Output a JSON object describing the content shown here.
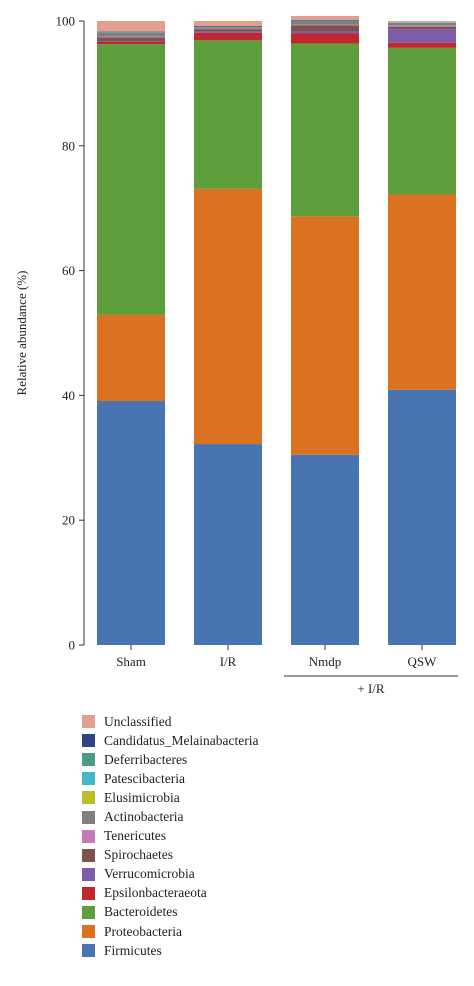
{
  "chart_data": {
    "type": "bar",
    "stacked": true,
    "categories": [
      "Sham",
      "I/R",
      "Nmdp",
      "QSW"
    ],
    "group_label": "+ I/R",
    "grouped_categories": [
      "Nmdp",
      "QSW"
    ],
    "ylabel": "Relative abundance (%)",
    "xlabel": "",
    "ylim": [
      0,
      100
    ],
    "yticks": [
      0,
      20,
      40,
      60,
      80,
      100
    ],
    "grid": false,
    "legend_position": "bottom",
    "series": [
      {
        "name": "Firmicutes",
        "color": "#4874b2",
        "values": [
          39.1,
          32.2,
          30.5,
          40.9
        ]
      },
      {
        "name": "Proteobacteria",
        "color": "#db7221",
        "values": [
          13.8,
          40.9,
          38.2,
          31.3
        ]
      },
      {
        "name": "Bacteroidetes",
        "color": "#5e9e3c",
        "values": [
          43.4,
          23.8,
          27.7,
          23.5
        ]
      },
      {
        "name": "Epsilonbacteraeota",
        "color": "#c0282d",
        "values": [
          0.4,
          1.2,
          1.6,
          0.8
        ]
      },
      {
        "name": "Verrucomicrobia",
        "color": "#7f5ca8",
        "values": [
          0.1,
          0.2,
          0.4,
          2.2
        ]
      },
      {
        "name": "Spirochaetes",
        "color": "#7e5349",
        "values": [
          0.6,
          0.4,
          0.9,
          0.4
        ]
      },
      {
        "name": "Tenericutes",
        "color": "#c37bb7",
        "values": [
          0.1,
          0.1,
          0.1,
          0.2
        ]
      },
      {
        "name": "Actinobacteria",
        "color": "#808080",
        "values": [
          0.6,
          0.2,
          0.6,
          0.4
        ]
      },
      {
        "name": "Elusimicrobia",
        "color": "#bcbd2e",
        "values": [
          0.0,
          0.0,
          0.0,
          0.0
        ]
      },
      {
        "name": "Patescibacteria",
        "color": "#44b7c9",
        "values": [
          0.0,
          0.0,
          0.0,
          0.1
        ]
      },
      {
        "name": "Deferribacteres",
        "color": "#4a9c86",
        "values": [
          0.1,
          0.1,
          0.1,
          0.0
        ]
      },
      {
        "name": "Candidatus_Melainabacteria",
        "color": "#2f4482",
        "values": [
          0.1,
          0.1,
          0.1,
          0.0
        ]
      },
      {
        "name": "Unclassified",
        "color": "#e3a090",
        "values": [
          1.7,
          0.8,
          0.6,
          0.2
        ]
      }
    ],
    "legend_order": [
      "Unclassified",
      "Candidatus_Melainabacteria",
      "Deferribacteres",
      "Patescibacteria",
      "Elusimicrobia",
      "Actinobacteria",
      "Tenericutes",
      "Spirochaetes",
      "Verrucomicrobia",
      "Epsilonbacteraeota",
      "Bacteroidetes",
      "Proteobacteria",
      "Firmicutes"
    ]
  }
}
